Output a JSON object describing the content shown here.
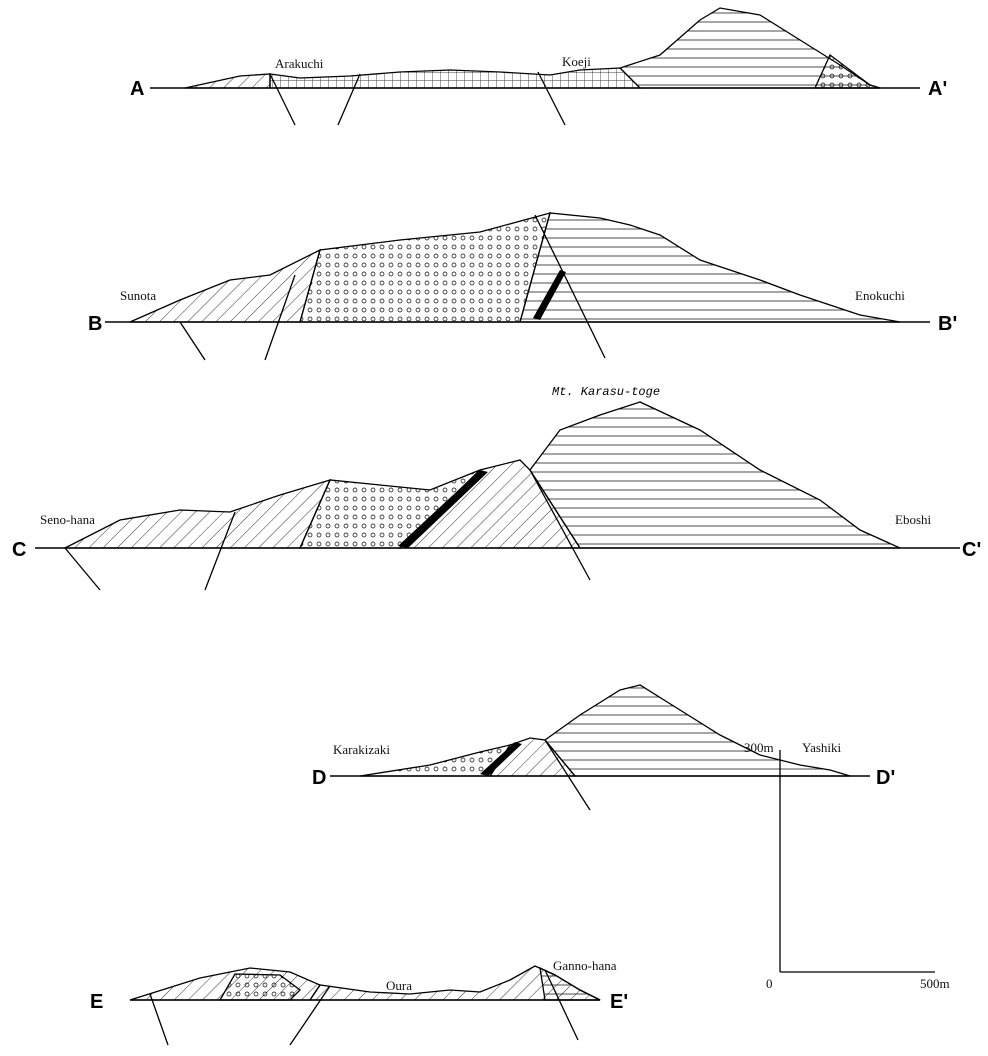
{
  "sections": [
    {
      "start": "A",
      "end": "A'",
      "places": [
        "Arakuchi",
        "Koeji"
      ]
    },
    {
      "start": "B",
      "end": "B'",
      "places": [
        "Sunota",
        "Enokuchi"
      ]
    },
    {
      "start": "C",
      "end": "C'",
      "places": [
        "Seno-hana",
        "Eboshi"
      ]
    },
    {
      "start": "D",
      "end": "D'",
      "places": [
        "Karakizaki",
        "Yashiki"
      ]
    },
    {
      "start": "E",
      "end": "E'",
      "places": [
        "Oura",
        "Ganno-hana"
      ]
    }
  ],
  "peak_label": "Mt. Karasu-toge",
  "scale": {
    "vertical": "300m",
    "origin": "0",
    "horizontal": "500m"
  }
}
